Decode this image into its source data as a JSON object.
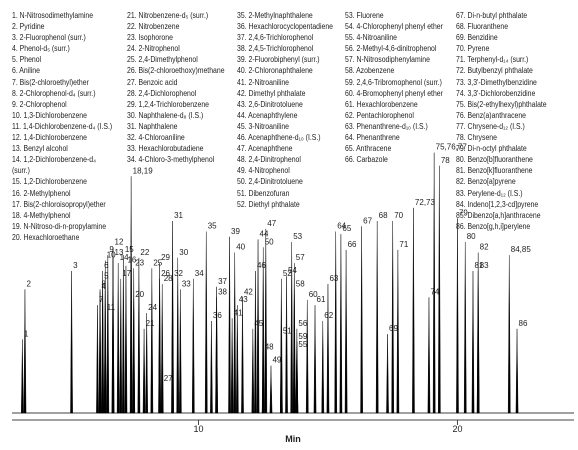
{
  "chart_data": {
    "type": "chromatogram",
    "x_label": "Min",
    "xlim": [
      2.8,
      24.5
    ],
    "xticks": [
      10,
      20
    ],
    "ylim": [
      0,
      100
    ],
    "color": "#000000",
    "peak_labels": [
      "1",
      "2",
      "3",
      "4",
      "5",
      "6",
      "7",
      "8",
      "9",
      "10",
      "11",
      "12",
      "13",
      "14",
      "15",
      "16",
      "17",
      "18,19",
      "20",
      "21",
      "22",
      "23",
      "24",
      "25",
      "26",
      "27",
      "28",
      "29",
      "30",
      "31",
      "32",
      "33",
      "34",
      "35",
      "36",
      "37",
      "38",
      "39",
      "40",
      "41",
      "42",
      "43",
      "44",
      "45",
      "46",
      "47",
      "48",
      "49",
      "50",
      "51",
      "52",
      "53",
      "54",
      "55",
      "56",
      "57",
      "58",
      "59",
      "60",
      "61",
      "62",
      "63",
      "64",
      "65",
      "66",
      "67",
      "68",
      "69",
      "70",
      "71",
      "72,73",
      "74",
      "75,76,77",
      "78",
      "79",
      "80",
      "81",
      "82",
      "83",
      "84,85",
      "86"
    ],
    "x": [
      3.2,
      3.3,
      5.1,
      6.2,
      6.3,
      6.3,
      6.1,
      6.2,
      6.5,
      6.4,
      6.4,
      6.7,
      6.7,
      6.9,
      7.1,
      7.2,
      7.0,
      7.4,
      7.5,
      7.9,
      7.7,
      7.5,
      8.0,
      8.2,
      8.5,
      8.6,
      8.6,
      8.5,
      9.2,
      9.0,
      9.0,
      9.3,
      9.8,
      10.3,
      10.5,
      10.7,
      10.7,
      11.2,
      11.4,
      11.3,
      11.7,
      11.5,
      12.3,
      12.1,
      12.2,
      12.6,
      12.5,
      12.8,
      12.5,
      13.2,
      13.2,
      13.6,
      13.4,
      13.8,
      13.8,
      13.7,
      13.7,
      13.8,
      14.2,
      14.5,
      14.8,
      15.0,
      15.3,
      15.5,
      15.7,
      16.3,
      16.9,
      17.3,
      17.5,
      17.7,
      18.3,
      18.9,
      19.1,
      19.3,
      20.0,
      20.3,
      20.6,
      20.8,
      20.8,
      22.0,
      22.3
    ],
    "values": [
      28,
      47,
      54,
      46,
      50,
      54,
      41,
      47,
      60,
      58,
      38,
      63,
      59,
      57,
      60,
      56,
      51,
      90,
      43,
      32,
      59,
      55,
      38,
      55,
      51,
      11,
      49,
      57,
      59,
      73,
      51,
      47,
      51,
      69,
      35,
      48,
      44,
      67,
      61,
      36,
      44,
      41,
      66,
      32,
      54,
      70,
      23,
      18,
      63,
      29,
      51,
      65,
      52,
      24,
      32,
      57,
      47,
      27,
      43,
      41,
      35,
      49,
      69,
      68,
      62,
      71,
      73,
      30,
      73,
      62,
      78,
      44,
      99,
      94,
      74,
      65,
      54,
      61,
      54,
      60,
      32
    ],
    "legend_columns": [
      [
        "1. N-Nitrosodimethylamine",
        "2. Pyridine",
        "3. 2-Fluorophenol (surr.)",
        "4. Phenol-d₅ (surr.)",
        "5. Phenol",
        "6. Aniline",
        "7. Bis(2-chloroethyl)ether",
        "8. 2-Chlorophenol-d₄ (surr.)",
        "9. 2-Chlorophenol",
        "10. 1,3-Dichlorobenzene",
        "11. 1,4-Dichlorobenzene-d₄ (I.S.)",
        "12. 1,4-Dichlorobenzene",
        "13. Benzyl alcohol",
        "14. 1,2-Dichlorobenzene-d₄\n(surr.)",
        "15. 1,2-Dichlorobenzene",
        "16. 2-Methylphenol",
        "17. Bis(2-chloroisopropyl)ether",
        "18. 4-Methylphenol",
        "19. N-Nitroso-di-n-propylamine",
        "20. Hexachloroethane"
      ],
      [
        "21. Nitrobenzene-d₅ (surr.)",
        "22. Nitrobenzene",
        "23. Isophorone",
        "24. 2-Nitrophenol",
        "25. 2,4-Dimethylphenol",
        "26. Bis(2-chloroethoxy)methane",
        "27. Benzoic acid",
        "28. 2,4-Dichlorophenol",
        "29. 1,2,4-Trichlorobenzene",
        "30. Naphthalene-d₈ (I.S.)",
        "31. Naphthalene",
        "32. 4-Chloroaniline",
        "33. Hexachlorobutadiene",
        "34. 4-Chloro-3-methylphenol"
      ],
      [
        "35. 2-Methylnaphthalene",
        "36. Hexachlorocyclopentadiene",
        "37. 2,4,6-Trichlorophenol",
        "38. 2,4,5-Trichlorophenol",
        "39. 2-Fluorobiphenyl (surr.)",
        "40. 2-Chloronaphthalene",
        "41. 2-Nitroaniline",
        "42. Dimethyl phthalate",
        "43. 2,6-Dinitrotoluene",
        "44. Acenaphthylene",
        "45. 3-Nitroaniline",
        "46. Acenaphthene-d₁₀ (I.S.)",
        "47. Acenaphthene",
        "48. 2,4-Dinitrophenol",
        "49. 4-Nitrophenol",
        "50. 2,4-Dinitrotoluene",
        "51. Dibenzofuran",
        "52. Diethyl phthalate"
      ],
      [
        "53. Fluorene",
        "54. 4-Chlorophenyl phenyl ether",
        "55. 4-Nitroaniline",
        "56. 2-Methyl-4,6-dinitrophenol",
        "57. N-Nitrosodiphenylamine",
        "58. Azobenzene",
        "59. 2,4,6-Tribromophenol (surr.)",
        "60. 4-Bromophenyl phenyl ether",
        "61. Hexachlorobenzene",
        "62. Pentachlorophenol",
        "63. Phenanthrene-d₁₀ (I.S.)",
        "64. Phenanthrene",
        "65. Anthracene",
        "66. Carbazole"
      ],
      [
        "67. Di-n-butyl phthalate",
        "68. Fluoranthene",
        "69. Benzidine",
        "70. Pyrene",
        "71. Terphenyl-d₁₄ (surr.)",
        "72. Butylbenzyl phthalate",
        "73. 3,3'-Dimethylbenzidine",
        "74. 3,3'-Dichlorobenzidine",
        "75. Bis(2-ethylhexyl)phthalate",
        "76. Benz(a)anthracene",
        "77. Chrysene-d₁₂ (I.S.)",
        "78. Chrysene",
        "79. Di-n-octyl phthalate",
        "80. Benzo[b]fluoranthene",
        "81. Benzo[k]fluoranthene",
        "82. Benzo[a]pyrene",
        "83. Perylene-d₁₂ (I.S.)",
        "84. Indeno[1,2,3-cd]pyrene",
        "85. Dibenzo[a,h]anthracene",
        "86. Benzo[g,h,i]perylene"
      ]
    ]
  }
}
